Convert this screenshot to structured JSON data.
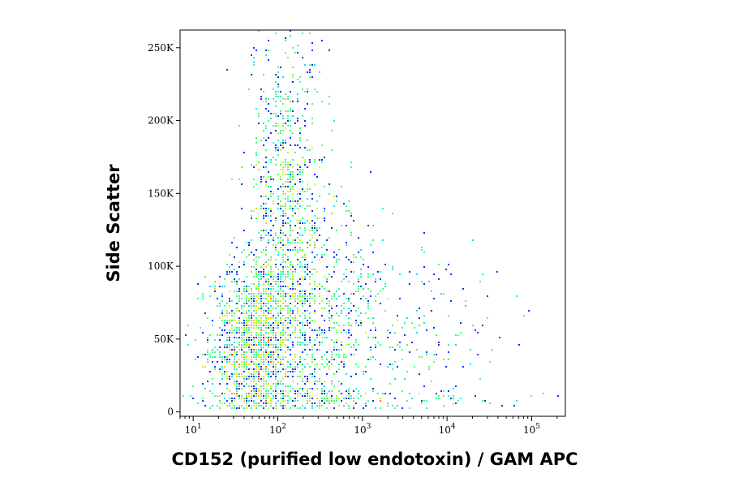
{
  "chart_data": {
    "type": "scatter",
    "title": "",
    "xlabel": "CD152 (purified low endotoxin) / GAM APC",
    "ylabel": "Side Scatter",
    "xscale": "log",
    "yscale": "linear",
    "xlim": [
      7,
      250000
    ],
    "ylim": [
      -3000,
      262144
    ],
    "x_ticks": [
      {
        "base": "10",
        "exp": "1",
        "value": 10
      },
      {
        "base": "10",
        "exp": "2",
        "value": 100
      },
      {
        "base": "10",
        "exp": "3",
        "value": 1000
      },
      {
        "base": "10",
        "exp": "4",
        "value": 10000
      },
      {
        "base": "10",
        "exp": "5",
        "value": 100000
      }
    ],
    "y_ticks": [
      {
        "label": "0",
        "value": 0
      },
      {
        "label": "50K",
        "value": 50000
      },
      {
        "label": "100K",
        "value": 100000
      },
      {
        "label": "150K",
        "value": 150000
      },
      {
        "label": "200K",
        "value": 200000
      },
      {
        "label": "250K",
        "value": 250000
      }
    ],
    "grid": false,
    "legend": "none",
    "colormap": [
      "#00008f",
      "#0033ff",
      "#00a0ff",
      "#00e5ee",
      "#40ff80",
      "#c8ff00",
      "#ffd000",
      "#ff7000",
      "#e00000"
    ],
    "populations": [
      {
        "x_center": 55,
        "x_spread_decades": 0.28,
        "y_center": 45000,
        "y_spread": 30000,
        "weight": 0.45
      },
      {
        "x_center": 120,
        "x_spread_decades": 0.22,
        "y_center": 150000,
        "y_spread": 60000,
        "weight": 0.25
      },
      {
        "x_center": 300,
        "x_spread_decades": 0.35,
        "y_center": 60000,
        "y_spread": 45000,
        "weight": 0.2
      },
      {
        "x_center": 2000,
        "x_spread_decades": 0.7,
        "y_center": 40000,
        "y_spread": 40000,
        "weight": 0.1
      }
    ]
  }
}
